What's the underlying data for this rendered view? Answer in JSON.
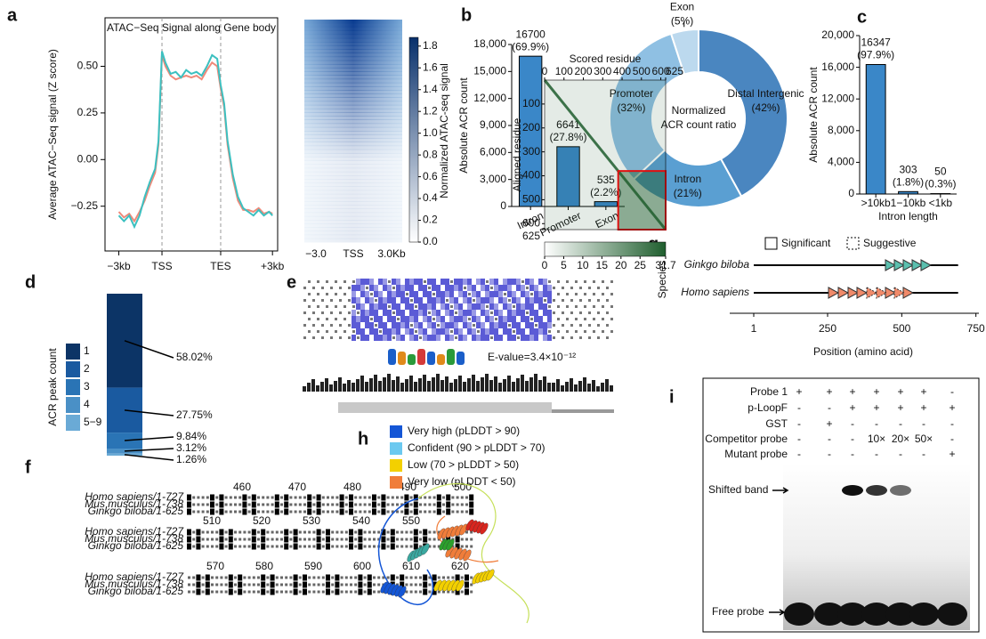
{
  "panel_labels": [
    "a",
    "b",
    "c",
    "d",
    "e",
    "f",
    "g",
    "h",
    "i"
  ],
  "chart_data": [
    {
      "type": "line",
      "title": "ATAC−Seq Signal along Gene body",
      "ylabel": "Average ATAC−Seq signal (Z score)",
      "x": [
        8,
        11,
        14,
        17,
        20,
        23,
        26,
        29,
        31,
        33,
        35,
        38,
        41,
        44,
        47,
        50,
        53,
        56,
        59,
        62,
        65,
        67,
        69,
        71,
        74,
        77,
        80,
        83,
        86,
        89,
        92,
        95,
        97
      ],
      "xlim": [
        0,
        100
      ],
      "xticks": [
        {
          "value": 8,
          "label": "−3kb"
        },
        {
          "value": 33,
          "label": "TSS"
        },
        {
          "value": 67,
          "label": "TES"
        },
        {
          "value": 97,
          "label": "+3kb"
        }
      ],
      "ylim": [
        -0.49,
        0.76
      ],
      "yticks": [
        {
          "value": -0.25,
          "label": "−0.25"
        },
        {
          "value": 0,
          "label": "0.00"
        },
        0.25,
        {
          "value": 0.5,
          "label": "0.50"
        }
      ],
      "series": [
        {
          "color": "#f08a7a",
          "values": [
            -0.28,
            -0.31,
            -0.29,
            -0.33,
            -0.28,
            -0.22,
            -0.14,
            -0.07,
            0.08,
            0.56,
            0.5,
            0.45,
            0.43,
            0.44,
            0.45,
            0.44,
            0.45,
            0.43,
            0.48,
            0.52,
            0.5,
            0.38,
            0.28,
            0.08,
            -0.1,
            -0.22,
            -0.27,
            -0.27,
            -0.28,
            -0.26,
            -0.29,
            -0.28,
            -0.29
          ]
        },
        {
          "color": "#3cc0c0",
          "values": [
            -0.3,
            -0.33,
            -0.3,
            -0.36,
            -0.3,
            -0.2,
            -0.12,
            -0.05,
            0.1,
            0.58,
            0.52,
            0.46,
            0.47,
            0.44,
            0.48,
            0.46,
            0.47,
            0.45,
            0.5,
            0.56,
            0.54,
            0.4,
            0.3,
            0.1,
            -0.08,
            -0.2,
            -0.26,
            -0.28,
            -0.3,
            -0.27,
            -0.3,
            -0.28,
            -0.3
          ]
        }
      ]
    },
    {
      "type": "heatmap",
      "categories": [
        "−3.0",
        "TSS",
        "3.0Kb"
      ],
      "colorbar_label": "Normalized ATAC-seq signal",
      "clim": [
        0,
        1.88
      ],
      "cticks": [
        {
          "value": 0,
          "label": "0.0"
        },
        0.2,
        0.4,
        0.6,
        0.8,
        {
          "value": 1,
          "label": "1.0"
        },
        1.2,
        1.4,
        1.6,
        1.8
      ],
      "colors": [
        "#ffffff",
        "#08306b"
      ]
    },
    {
      "type": "bar",
      "ylabel": "Absolute ACR count",
      "categories": [
        "Intron",
        "Promoter",
        "Exon"
      ],
      "values": [
        16700,
        6641,
        535
      ],
      "percent_labels": [
        "(69.9%)",
        "(27.8%)",
        "(2.2%)"
      ],
      "color": "#3a87c8",
      "ylim": [
        0,
        18000
      ],
      "yticks": [
        0,
        {
          "value": 3000,
          "label": "3,000"
        },
        {
          "value": 6000,
          "label": "6,000"
        },
        {
          "value": 9000,
          "label": "9,000"
        },
        {
          "value": 12000,
          "label": "12,000"
        },
        {
          "value": 15000,
          "label": "15,000"
        },
        {
          "value": 18000,
          "label": "18,000"
        }
      ]
    },
    {
      "type": "donut",
      "categories": [
        "Distal Intergenic",
        "Intron",
        "Promoter",
        "Exon"
      ],
      "values": [
        42,
        21,
        32,
        5
      ],
      "value_labels": [
        "(42%)",
        "(21%)",
        "(32%)",
        "(5%)"
      ],
      "colors": [
        "#4a86c0",
        "#5a9fd2",
        "#8fc0e3",
        "#bcd9ee"
      ],
      "center_label": [
        "Normalized",
        "ACR count ratio"
      ]
    },
    {
      "type": "bar",
      "ylabel": "Absolute ACR count",
      "xlabel": "Intron length",
      "categories": [
        ">10kb",
        "1−10kb",
        "<1kb"
      ],
      "values": [
        16347,
        303,
        50
      ],
      "percent_labels": [
        "(97.9%)",
        "(1.8%)",
        "(0.3%)"
      ],
      "color": "#3a87c8",
      "ylim": [
        0,
        20000
      ],
      "yticks": [
        0,
        {
          "value": 4000,
          "label": "4,000"
        },
        {
          "value": 8000,
          "label": "8,000"
        },
        {
          "value": 12000,
          "label": "12,000"
        },
        {
          "value": 16000,
          "label": "16,000"
        },
        {
          "value": 20000,
          "label": "20,000"
        }
      ]
    },
    {
      "type": "stacked_bar",
      "legend_title": "ACR peak count",
      "ylim": [
        0,
        100
      ],
      "series": [
        {
          "name": "1",
          "color": "#0c3466",
          "values": [
            58.02
          ],
          "value_labels": [
            "58.02%"
          ]
        },
        {
          "name": "2",
          "color": "#1a5aa0",
          "values": [
            27.75
          ],
          "value_labels": [
            "27.75%"
          ]
        },
        {
          "name": "3",
          "color": "#2a74b5",
          "values": [
            9.84
          ],
          "value_labels": [
            "9.84%"
          ]
        },
        {
          "name": "4",
          "color": "#4a90c6",
          "values": [
            3.12
          ],
          "value_labels": [
            "3.12%"
          ]
        },
        {
          "name": "5−9",
          "color": "#6aaad6",
          "values": [
            1.26
          ],
          "value_labels": [
            "1.26%"
          ]
        }
      ]
    },
    {
      "type": "track",
      "ylabel": "Species",
      "xlabel": "Position (amino acid)",
      "xlim": [
        -80,
        760
      ],
      "xticks": [
        1,
        250,
        500,
        750
      ],
      "legend": [
        "Significant",
        "Suggestive"
      ],
      "series": [
        {
          "name": "Ginkgo biloba",
          "color": "#5bbfae",
          "range": [
            1,
            690
          ],
          "significant": [
            460,
            490,
            520,
            550,
            580
          ],
          "suggestive": []
        },
        {
          "name": "Homo sapiens",
          "color": "#f08a6a",
          "range": [
            1,
            690
          ],
          "significant": [
            268,
            301,
            334,
            364,
            460,
            520
          ],
          "suggestive": [
            397,
            430,
            490
          ]
        }
      ]
    },
    {
      "type": "contact_map",
      "title": "Scored residue",
      "ylabel": "Aligned residue",
      "xlim": [
        0,
        625
      ],
      "ylim": [
        0,
        625
      ],
      "xticks": [
        0,
        100,
        200,
        300,
        400,
        500,
        600,
        625
      ],
      "yticks": [
        100,
        200,
        300,
        400,
        500,
        600,
        625
      ],
      "highlight": [
        380,
        625
      ],
      "clim": [
        0,
        31.7
      ],
      "cticks": [
        0,
        5,
        10,
        15,
        20,
        25,
        31.7
      ],
      "colors": [
        "#ffffff",
        "#1f5e2e"
      ]
    }
  ],
  "motif": {
    "evalue": "E-value=3.4×10⁻¹²"
  },
  "alignment": {
    "species": [
      "Homo sapiens/1-727",
      "Mus musculus/1-738",
      "Ginkgo biloba/1-625"
    ],
    "blocks": [
      [
        460,
        470,
        480,
        490,
        500
      ],
      [
        510,
        520,
        530,
        540,
        550
      ],
      [
        570,
        580,
        590,
        600,
        610,
        620
      ]
    ]
  },
  "structure_legend": [
    {
      "label": "Very high (pLDDT > 90)",
      "color": "#1456d6"
    },
    {
      "label": "Confident (90 > pLDDT > 70)",
      "color": "#6cc9f0"
    },
    {
      "label": "Low (70 > pLDDT > 50)",
      "color": "#f3d000"
    },
    {
      "label": "Very low (pLDDT < 50)",
      "color": "#f07d3a"
    }
  ],
  "emsa": {
    "rows": [
      {
        "label": "Probe 1",
        "lanes": [
          "+",
          "+",
          "+",
          "+",
          "+",
          "+",
          "-"
        ]
      },
      {
        "label": "p-LoopF",
        "lanes": [
          "-",
          "-",
          "+",
          "+",
          "+",
          "+",
          "+"
        ]
      },
      {
        "label": "GST",
        "lanes": [
          "-",
          "+",
          "-",
          "-",
          "-",
          "-",
          "-"
        ]
      },
      {
        "label": "Competitor probe",
        "lanes": [
          "-",
          "-",
          "-",
          "10×",
          "20×",
          "50×",
          "-"
        ]
      },
      {
        "label": "Mutant probe",
        "lanes": [
          "-",
          "-",
          "-",
          "-",
          "-",
          "-",
          "+"
        ]
      }
    ],
    "band_labels": [
      "Shifted band",
      "Free probe"
    ]
  }
}
